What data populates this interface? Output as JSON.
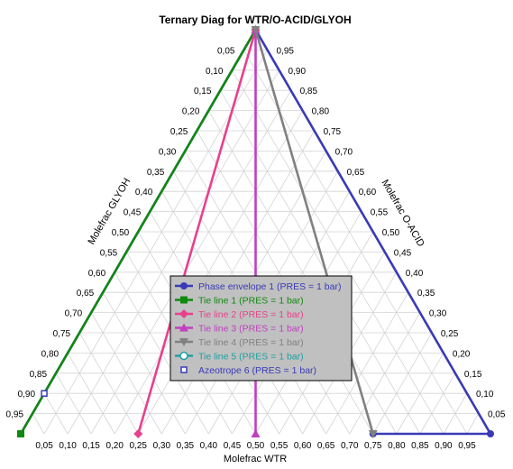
{
  "chart_data": {
    "type": "ternary",
    "title": "Ternary Diag for WTR/O-ACID/GLYOH",
    "axes": {
      "bottom": {
        "label": "Molefrac WTR",
        "ticks": [
          "0,05",
          "0,10",
          "0,15",
          "0,20",
          "0,25",
          "0,30",
          "0,35",
          "0,40",
          "0,45",
          "0,50",
          "0,55",
          "0,60",
          "0,65",
          "0,70",
          "0,75",
          "0,80",
          "0,85",
          "0,90",
          "0,95"
        ]
      },
      "left": {
        "label": "Molefrac GLYOH",
        "ticks": [
          "0,05",
          "0,10",
          "0,15",
          "0,20",
          "0,25",
          "0,30",
          "0,35",
          "0,40",
          "0,45",
          "0,50",
          "0,55",
          "0,60",
          "0,65",
          "0,70",
          "0,75",
          "0,80",
          "0,85",
          "0,90",
          "0,95"
        ]
      },
      "right": {
        "label": "Molefrac O-ACID",
        "ticks": [
          "0,95",
          "0,90",
          "0,85",
          "0,80",
          "0,75",
          "0,70",
          "0,65",
          "0,60",
          "0,55",
          "0,50",
          "0,45",
          "0,40",
          "0,35",
          "0,30",
          "0,25",
          "0,20",
          "0,15",
          "0,10",
          "0,05"
        ]
      }
    },
    "grid": true,
    "legend_position": "center",
    "series": [
      {
        "name": "Phase envelope 1 (PRES = 1  bar)",
        "color": "#3a3ab8",
        "marker": "circle",
        "points": [
          {
            "wtr": 0.0,
            "glyoh": 1.0,
            "oacid": 0.0
          },
          {
            "wtr": 0.0,
            "glyoh": 0.0,
            "oacid": 1.0
          },
          {
            "wtr": 1.0,
            "glyoh": 0.0,
            "oacid": 0.0
          },
          {
            "wtr": 0.75,
            "glyoh": 0.25,
            "oacid": 0.0
          }
        ]
      },
      {
        "name": "Tie line 1 (PRES = 1  bar)",
        "color": "#118811",
        "marker": "square",
        "points": [
          {
            "wtr": 0.0,
            "glyoh": 1.0,
            "oacid": 0.0
          },
          {
            "wtr": 0.0,
            "glyoh": 0.0,
            "oacid": 1.0
          }
        ]
      },
      {
        "name": "Tie line 2 (PRES = 1  bar)",
        "color": "#e8408c",
        "marker": "diamond",
        "points": [
          {
            "wtr": 0.25,
            "glyoh": 0.75,
            "oacid": 0.0
          },
          {
            "wtr": 0.0,
            "glyoh": 0.0,
            "oacid": 1.0
          }
        ]
      },
      {
        "name": "Tie line 3 (PRES = 1  bar)",
        "color": "#c040c0",
        "marker": "triangle",
        "points": [
          {
            "wtr": 0.5,
            "glyoh": 0.5,
            "oacid": 0.0
          },
          {
            "wtr": 0.0,
            "glyoh": 0.0,
            "oacid": 1.0
          }
        ]
      },
      {
        "name": "Tie line 4 (PRES = 1  bar)",
        "color": "#808080",
        "marker": "triangle-down",
        "points": [
          {
            "wtr": 0.75,
            "glyoh": 0.25,
            "oacid": 0.0
          },
          {
            "wtr": 0.0,
            "glyoh": 0.0,
            "oacid": 1.0
          }
        ]
      },
      {
        "name": "Tie line 5 (PRES = 1  bar)",
        "color": "#20a0a0",
        "marker": "circle-open",
        "points": []
      },
      {
        "name": "Azeotrope 6 (PRES = 1  bar)",
        "color": "#3a3ab8",
        "marker": "square-open",
        "points": [
          {
            "wtr": 0.0,
            "glyoh": 0.9,
            "oacid": 0.1
          }
        ]
      }
    ]
  }
}
